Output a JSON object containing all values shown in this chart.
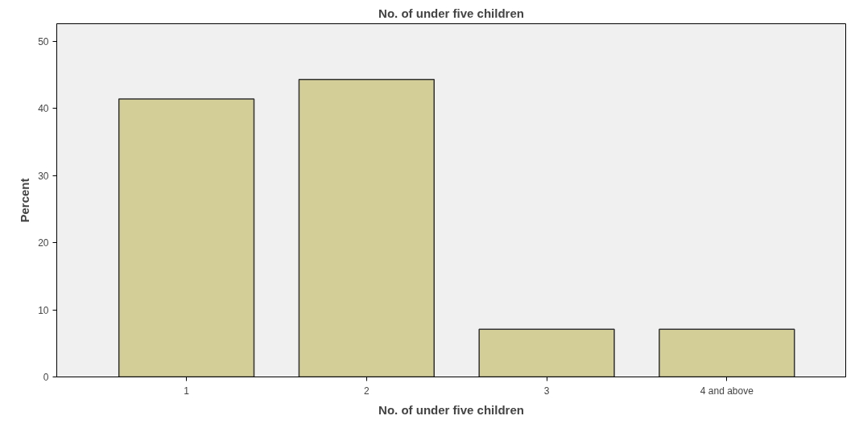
{
  "chart_data": {
    "type": "bar",
    "title": "No. of under five children",
    "xlabel": "No. of under five children",
    "ylabel": "Percent",
    "categories": [
      "1",
      "2",
      "3",
      "4 and above"
    ],
    "values": [
      41.4,
      44.3,
      7.1,
      7.1
    ],
    "color": "#d3ce97",
    "ylim": [
      0,
      52.6
    ],
    "yticks": [
      0,
      10,
      20,
      30,
      40,
      50
    ],
    "grid": false
  }
}
